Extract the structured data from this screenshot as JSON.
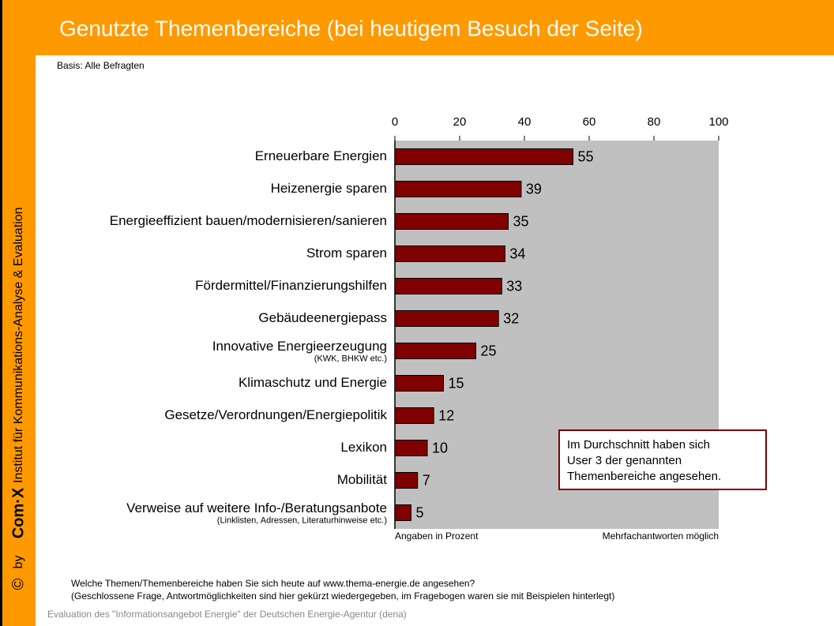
{
  "chart_data": {
    "type": "bar",
    "orientation": "horizontal",
    "title": "Genutzte Themenbereiche (bei heutigem Besuch der Seite)",
    "subtitle": "Basis: Alle Befragten",
    "categories": [
      "Erneuerbare Energien",
      "Heizenergie sparen",
      "Energieeffizient bauen/modernisieren/sanieren",
      "Strom sparen",
      "Fördermittel/Finanzierungshilfen",
      "Gebäudeenergiepass",
      "Innovative Energieerzeugung",
      "Klimaschutz und Energie",
      "Gesetze/Verordnungen/Energiepolitik",
      "Lexikon",
      "Mobilität",
      "Verweise auf weitere Info-/Beratungsanbote"
    ],
    "category_notes": [
      null,
      null,
      null,
      null,
      null,
      null,
      "(KWK, BHKW etc.)",
      null,
      null,
      null,
      null,
      "(Linklisten, Adressen, Literaturhinweise etc.)"
    ],
    "values": [
      55,
      39,
      35,
      34,
      33,
      32,
      25,
      15,
      12,
      10,
      7,
      5
    ],
    "color": "#800000",
    "plot_background": "#c0c0c0",
    "xlim": [
      0,
      100
    ],
    "xticks": [
      0,
      20,
      40,
      60,
      80,
      100
    ],
    "grid": false,
    "axis_note_left": "Angaben in Prozent",
    "axis_note_right": "Mehrfachantworten möglich",
    "annotation": [
      "Im Durchschnitt haben sich",
      "User 3 der genannten",
      "Themenbereiche angesehen."
    ],
    "question": [
      "Welche Themen/Themenbereiche haben Sie sich heute auf www.thema-energie.de angesehen?",
      "(Geschlossene Frage, Antwortmöglichkeiten sind hier gekürzt wiedergegeben, im Fragebogen waren sie mit Beispielen hinterlegt)"
    ],
    "footer": "Evaluation des \"Informationsangebot Energie\" der Deutschen Energie-Agentur (dena)",
    "sidebar": {
      "copyright": "©",
      "by": "by",
      "logo": "Com·X",
      "institute": "Institut für Kommunikations-Analyse & Evaluation"
    }
  }
}
